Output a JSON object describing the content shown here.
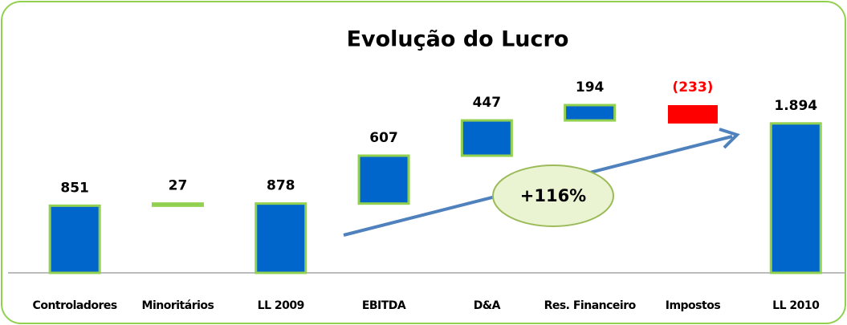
{
  "chart_data": {
    "type": "waterfall",
    "title": "Evolução do Lucro",
    "categories": [
      "Controladores",
      "Minoritários",
      "LL 2009",
      "EBITDA",
      "D&A",
      "Res. Financeiro",
      "Impostos",
      "LL 2010"
    ],
    "values": [
      851,
      27,
      878,
      607,
      447,
      194,
      -233,
      1894
    ],
    "value_labels": [
      "851",
      "27",
      "878",
      "607",
      "447",
      "194",
      "(233)",
      "1.894"
    ],
    "is_total": [
      false,
      false,
      true,
      false,
      false,
      false,
      false,
      true
    ],
    "color": "#0066cc",
    "border_color": "#92d050",
    "negative_color": "#ff0000",
    "annotation": "+116%"
  }
}
